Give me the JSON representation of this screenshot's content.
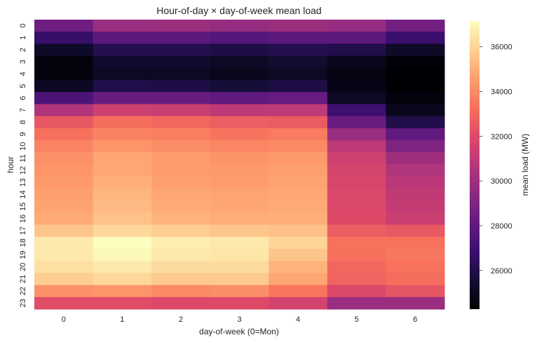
{
  "chart_data": {
    "type": "heatmap",
    "title": "Hour-of-day × day-of-week mean load",
    "xlabel": "day-of-week (0=Mon)",
    "ylabel": "hour",
    "colorbar_label": "mean load (MW)",
    "colormap": "magma",
    "vmin": 24270,
    "vmax": 37150,
    "colorbar_ticks": [
      26000,
      28000,
      30000,
      32000,
      34000,
      36000
    ],
    "x_categories": [
      "0",
      "1",
      "2",
      "3",
      "4",
      "5",
      "6"
    ],
    "y_categories": [
      "0",
      "1",
      "2",
      "3",
      "4",
      "5",
      "6",
      "7",
      "8",
      "9",
      "10",
      "11",
      "12",
      "13",
      "14",
      "15",
      "16",
      "17",
      "18",
      "19",
      "20",
      "21",
      "22",
      "23"
    ],
    "values": [
      [
        28500,
        29800,
        29900,
        29700,
        29900,
        29700,
        28600
      ],
      [
        26700,
        27900,
        27900,
        27700,
        27900,
        27900,
        26800
      ],
      [
        25200,
        26100,
        26100,
        25900,
        26100,
        26000,
        25200
      ],
      [
        24500,
        25300,
        25300,
        25100,
        25400,
        24900,
        24400
      ],
      [
        24500,
        25100,
        25100,
        24900,
        25100,
        24600,
        24270
      ],
      [
        25100,
        26000,
        25900,
        25600,
        25900,
        24700,
        24300
      ],
      [
        27400,
        28300,
        28300,
        28000,
        28200,
        25100,
        24500
      ],
      [
        30500,
        31400,
        31300,
        30900,
        30900,
        26900,
        24900
      ],
      [
        32500,
        33200,
        33000,
        32700,
        32600,
        28300,
        26000
      ],
      [
        33300,
        33800,
        33700,
        33400,
        33600,
        29800,
        28000
      ],
      [
        33800,
        34300,
        34100,
        33900,
        34000,
        30900,
        29000
      ],
      [
        34200,
        34800,
        34500,
        34300,
        34400,
        31500,
        30000
      ],
      [
        34300,
        34800,
        34500,
        34400,
        34600,
        31700,
        30500
      ],
      [
        34400,
        35000,
        34600,
        34500,
        34700,
        31800,
        30800
      ],
      [
        34600,
        35200,
        34800,
        34700,
        34800,
        31900,
        31000
      ],
      [
        34700,
        35300,
        34900,
        34800,
        34900,
        31900,
        31100
      ],
      [
        34900,
        35500,
        35100,
        35000,
        35000,
        32000,
        31300
      ],
      [
        35600,
        36100,
        35800,
        35600,
        35500,
        32700,
        32500
      ],
      [
        36600,
        37150,
        36700,
        36600,
        36000,
        33300,
        33300
      ],
      [
        36600,
        37000,
        36600,
        36500,
        35600,
        33300,
        33500
      ],
      [
        36300,
        36600,
        36200,
        36200,
        35100,
        33000,
        33300
      ],
      [
        35800,
        36100,
        35700,
        35700,
        34800,
        32900,
        33200
      ],
      [
        34200,
        34300,
        34000,
        34100,
        33400,
        31900,
        32400
      ],
      [
        32100,
        32100,
        31900,
        32000,
        31600,
        29800,
        29800
      ]
    ]
  }
}
